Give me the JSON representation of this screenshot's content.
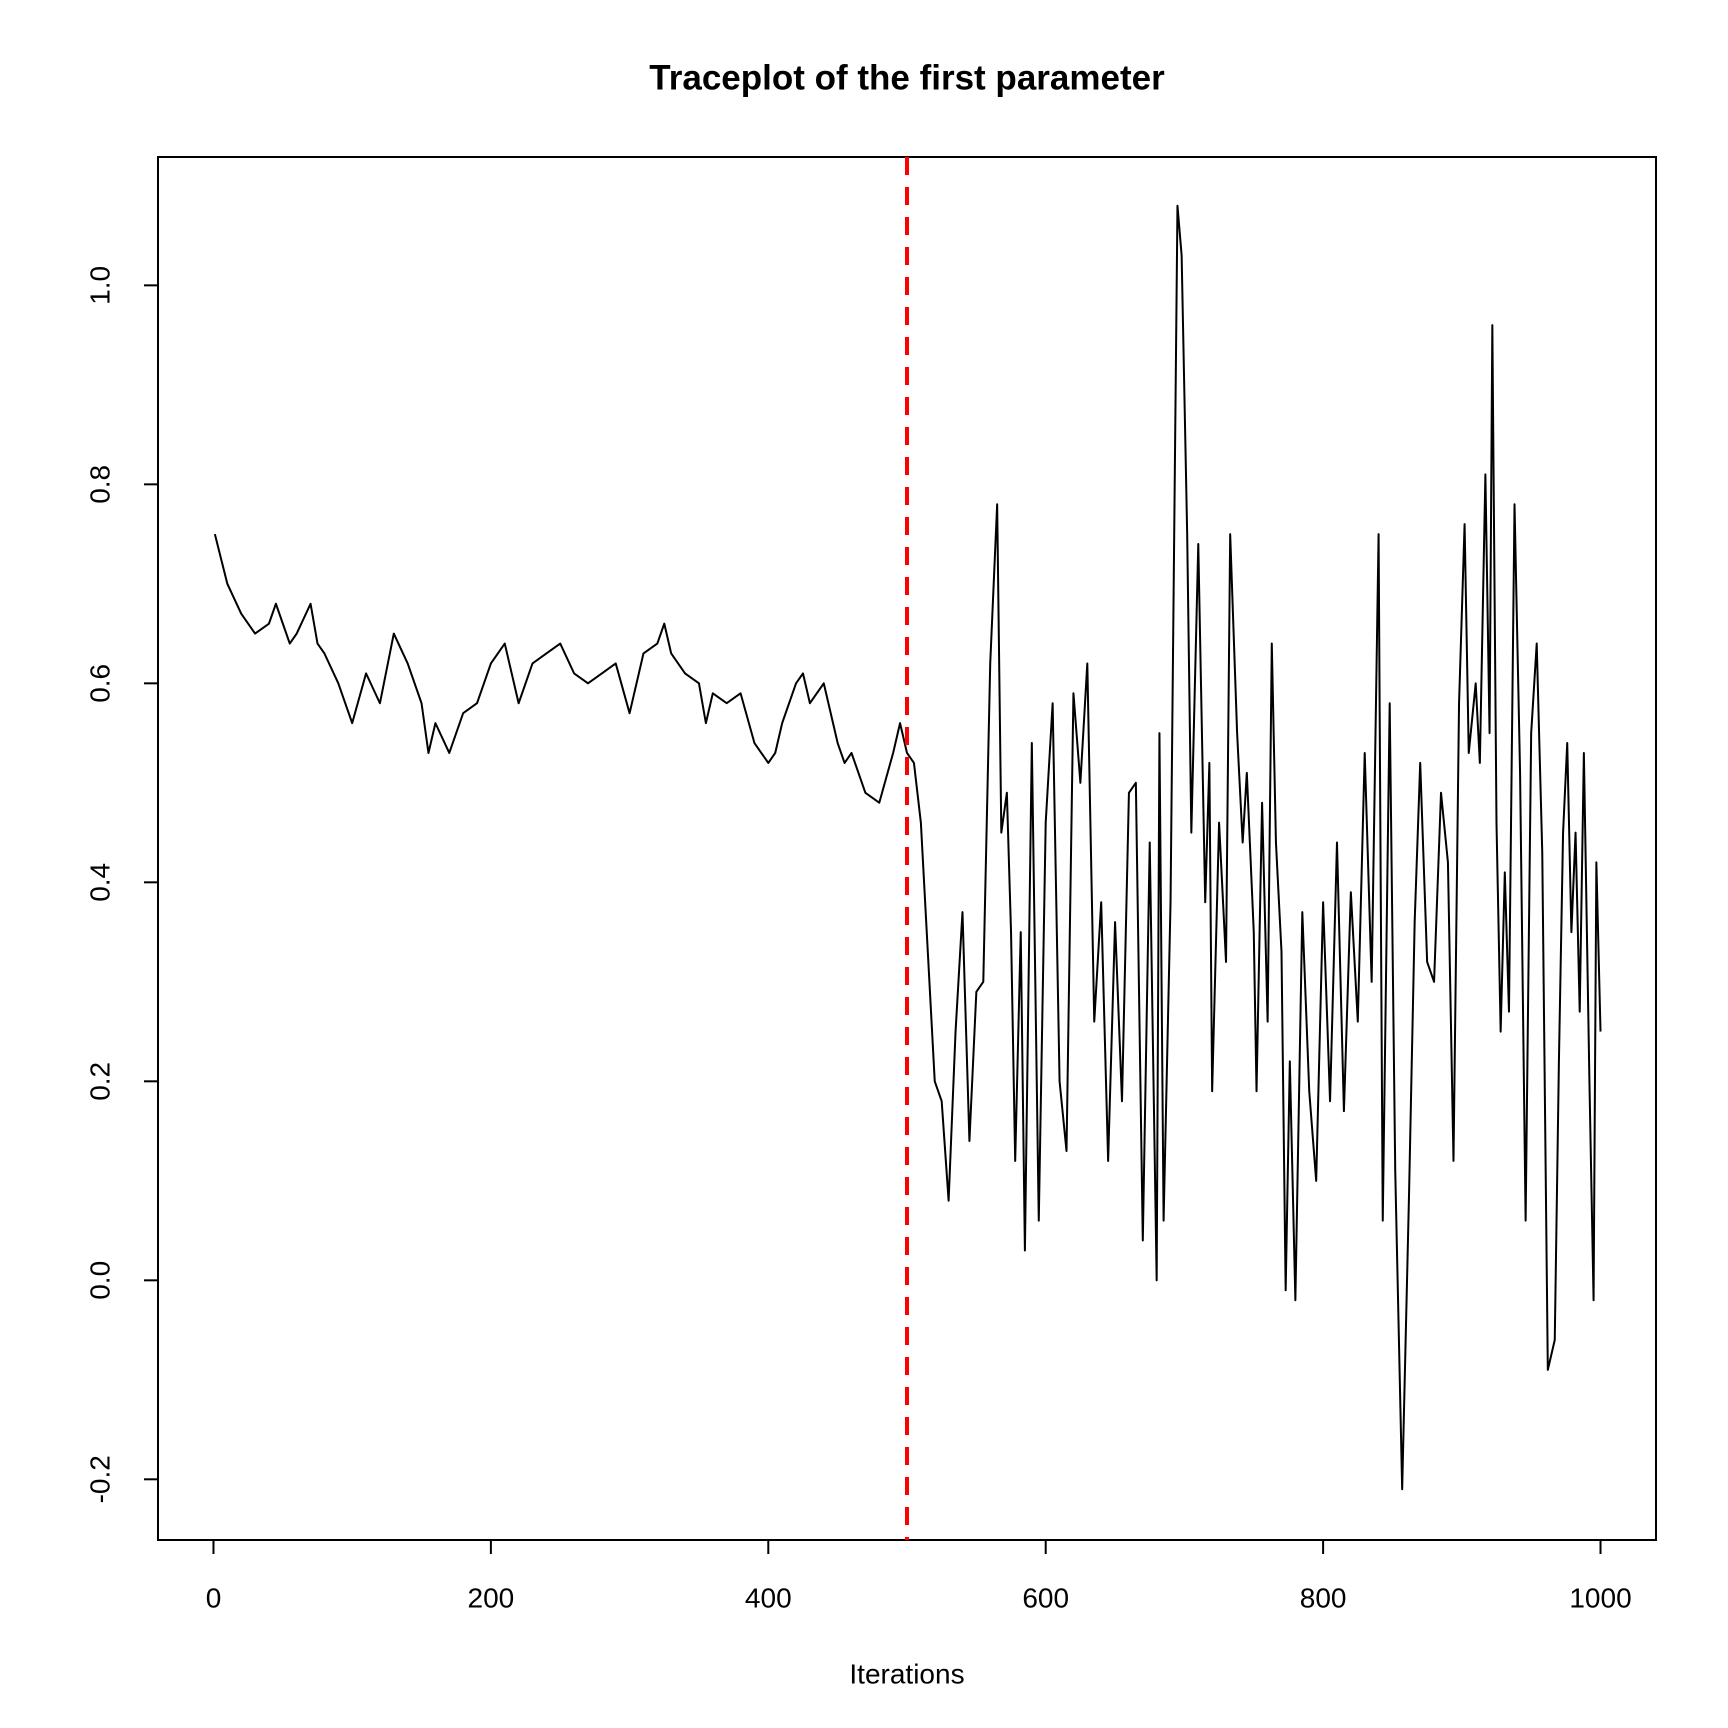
{
  "chart_data": {
    "type": "line",
    "title": "Traceplot of the first parameter",
    "x_label": "Iterations",
    "x": [
      1,
      10,
      20,
      30,
      40,
      45,
      50,
      55,
      60,
      70,
      75,
      80,
      90,
      100,
      110,
      120,
      130,
      140,
      150,
      155,
      160,
      170,
      180,
      190,
      200,
      210,
      220,
      230,
      240,
      250,
      260,
      270,
      280,
      290,
      300,
      310,
      320,
      325,
      330,
      340,
      350,
      355,
      360,
      370,
      380,
      390,
      400,
      405,
      410,
      420,
      425,
      430,
      440,
      450,
      455,
      460,
      470,
      480,
      490,
      495,
      500,
      505,
      510,
      515,
      520,
      525,
      530,
      535,
      540,
      545,
      550,
      555,
      560,
      565,
      568,
      572,
      575,
      578,
      582,
      585,
      590,
      595,
      600,
      605,
      610,
      615,
      620,
      625,
      630,
      635,
      640,
      645,
      650,
      655,
      660,
      665,
      670,
      675,
      680,
      682,
      685,
      690,
      695,
      698,
      702,
      705,
      710,
      715,
      718,
      720,
      725,
      730,
      733,
      738,
      742,
      745,
      750,
      752,
      756,
      760,
      763,
      766,
      770,
      773,
      776,
      780,
      785,
      790,
      795,
      800,
      805,
      810,
      815,
      820,
      825,
      830,
      835,
      840,
      843,
      848,
      852,
      857,
      862,
      866,
      870,
      875,
      880,
      885,
      890,
      894,
      898,
      902,
      905,
      910,
      913,
      917,
      920,
      922,
      925,
      928,
      931,
      934,
      938,
      942,
      946,
      950,
      954,
      958,
      962,
      967,
      970,
      973,
      976,
      979,
      982,
      985,
      988,
      992,
      995,
      997,
      1000
    ],
    "values": [
      0.75,
      0.7,
      0.67,
      0.65,
      0.66,
      0.68,
      0.66,
      0.64,
      0.65,
      0.68,
      0.64,
      0.63,
      0.6,
      0.56,
      0.61,
      0.58,
      0.65,
      0.62,
      0.58,
      0.53,
      0.56,
      0.53,
      0.57,
      0.58,
      0.62,
      0.64,
      0.58,
      0.62,
      0.63,
      0.64,
      0.61,
      0.6,
      0.61,
      0.62,
      0.57,
      0.63,
      0.64,
      0.66,
      0.63,
      0.61,
      0.6,
      0.56,
      0.59,
      0.58,
      0.59,
      0.54,
      0.52,
      0.53,
      0.56,
      0.6,
      0.61,
      0.58,
      0.6,
      0.54,
      0.52,
      0.53,
      0.49,
      0.48,
      0.53,
      0.56,
      0.53,
      0.52,
      0.46,
      0.33,
      0.2,
      0.18,
      0.08,
      0.25,
      0.37,
      0.14,
      0.29,
      0.3,
      0.62,
      0.78,
      0.45,
      0.49,
      0.35,
      0.12,
      0.35,
      0.03,
      0.54,
      0.06,
      0.46,
      0.58,
      0.2,
      0.13,
      0.59,
      0.5,
      0.62,
      0.26,
      0.38,
      0.12,
      0.36,
      0.18,
      0.49,
      0.5,
      0.04,
      0.44,
      0,
      0.55,
      0.06,
      0.38,
      1.08,
      1.03,
      0.75,
      0.45,
      0.74,
      0.38,
      0.52,
      0.19,
      0.46,
      0.32,
      0.75,
      0.55,
      0.44,
      0.51,
      0.35,
      0.19,
      0.48,
      0.26,
      0.64,
      0.44,
      0.33,
      -0.01,
      0.22,
      -0.02,
      0.37,
      0.19,
      0.1,
      0.38,
      0.18,
      0.44,
      0.17,
      0.39,
      0.26,
      0.53,
      0.3,
      0.75,
      0.06,
      0.58,
      0.11,
      -0.21,
      0.09,
      0.36,
      0.52,
      0.32,
      0.3,
      0.49,
      0.42,
      0.12,
      0.58,
      0.76,
      0.53,
      0.6,
      0.52,
      0.81,
      0.55,
      0.96,
      0.46,
      0.25,
      0.41,
      0.27,
      0.78,
      0.51,
      0.06,
      0.55,
      0.64,
      0.43,
      -0.09,
      -0.06,
      0.22,
      0.45,
      0.54,
      0.35,
      0.45,
      0.27,
      0.53,
      0.2,
      -0.02,
      0.42,
      0.25
    ],
    "color": "#000000",
    "xlim": [
      -40,
      1040
    ],
    "xticks": [
      0,
      200,
      400,
      600,
      800,
      1000
    ],
    "ylim": [
      -0.261,
      1.129
    ],
    "yticks": [
      -0.2,
      {
        "value": 0,
        "label": "0.0"
      },
      0.2,
      0.4,
      0.6,
      0.8,
      {
        "value": 1,
        "label": "1.0"
      }
    ],
    "vline": {
      "x": 500,
      "color": "#ff0000"
    }
  }
}
